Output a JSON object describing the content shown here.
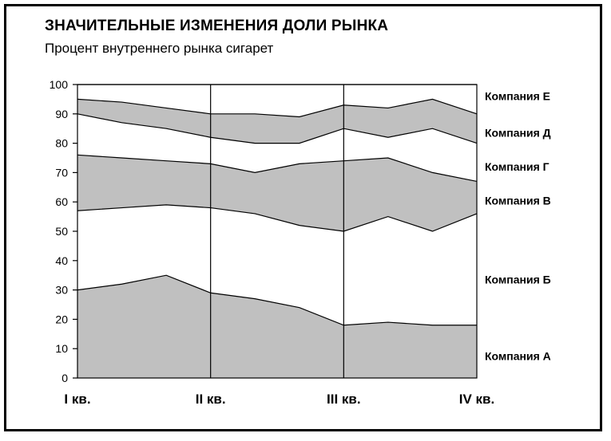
{
  "chart_data": {
    "type": "area",
    "title": "ЗНАЧИТЕЛЬНЫЕ ИЗМЕНЕНИЯ ДОЛИ РЫНКА",
    "subtitle": "Процент внутреннего рынка сигарет",
    "x": [
      0,
      0.333,
      0.667,
      1,
      1.333,
      1.667,
      2,
      2.333,
      2.667,
      3
    ],
    "xticks": [
      {
        "pos": 0,
        "label": "I кв."
      },
      {
        "pos": 1,
        "label": "II кв."
      },
      {
        "pos": 2,
        "label": "III кв."
      },
      {
        "pos": 3,
        "label": "IV кв."
      }
    ],
    "ylim": [
      0,
      100
    ],
    "yticks": [
      0,
      10,
      20,
      30,
      40,
      50,
      60,
      70,
      80,
      90,
      100
    ],
    "grid": false,
    "stacked_boundaries": [
      {
        "name": "Компания А",
        "top": [
          30,
          32,
          35,
          29,
          27,
          24,
          18,
          19,
          18,
          18
        ],
        "shaded": true
      },
      {
        "name": "Компания Б",
        "top": [
          57,
          58,
          59,
          58,
          56,
          52,
          50,
          55,
          50,
          56
        ],
        "shaded": false
      },
      {
        "name": "Компания В",
        "top": [
          76,
          75,
          74,
          73,
          70,
          73,
          74,
          75,
          70,
          67
        ],
        "shaded": true
      },
      {
        "name": "Компания Г",
        "top": [
          90,
          87,
          85,
          82,
          80,
          80,
          85,
          82,
          85,
          80
        ],
        "shaded": false
      },
      {
        "name": "Компания Д",
        "top": [
          95,
          94,
          92,
          90,
          90,
          89,
          93,
          92,
          95,
          90
        ],
        "shaded": true
      },
      {
        "name": "Компания Е",
        "top": [
          100,
          100,
          100,
          100,
          100,
          100,
          100,
          100,
          100,
          100
        ],
        "shaded": false
      }
    ],
    "legend_labels": [
      {
        "name": "Компания Е",
        "at": 96
      },
      {
        "name": "Компания Д",
        "at": 83.5
      },
      {
        "name": "Компания Г",
        "at": 72
      },
      {
        "name": "Компания В",
        "at": 60.5
      },
      {
        "name": "Компания Б",
        "at": 33.5
      },
      {
        "name": "Компания А",
        "at": 7.5
      }
    ],
    "colors": {
      "shade": "#c0c0c0",
      "line": "#000000"
    }
  }
}
